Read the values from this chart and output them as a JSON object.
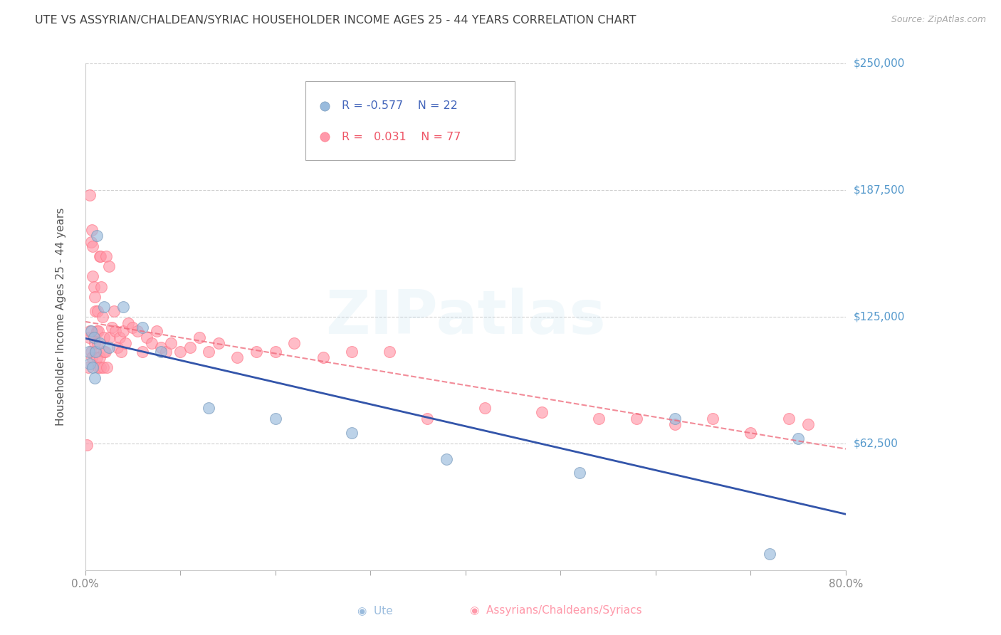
{
  "title": "UTE VS ASSYRIAN/CHALDEAN/SYRIAC HOUSEHOLDER INCOME AGES 25 - 44 YEARS CORRELATION CHART",
  "source": "Source: ZipAtlas.com",
  "ylabel": "Householder Income Ages 25 - 44 years",
  "watermark": "ZIPatlas",
  "xlim": [
    0.0,
    0.8
  ],
  "ylim": [
    0,
    250000
  ],
  "yticks": [
    0,
    62500,
    125000,
    187500,
    250000
  ],
  "right_tick_labels": [
    "",
    "$62,500",
    "$125,000",
    "$187,500",
    "$250,000"
  ],
  "xtick_positions": [
    0.0,
    0.1,
    0.2,
    0.3,
    0.4,
    0.5,
    0.6,
    0.7,
    0.8
  ],
  "xtick_labels": [
    "0.0%",
    "",
    "",
    "",
    "",
    "",
    "",
    "",
    "80.0%"
  ],
  "ute_R": -0.577,
  "ute_N": 22,
  "acs_R": 0.031,
  "acs_N": 77,
  "legend_label_ute": "Ute",
  "legend_label_acs": "Assyrians/Chaldeans/Syriacs",
  "ute_color": "#99BBDD",
  "acs_color": "#FF99AA",
  "trend_ute_color": "#3355AA",
  "trend_acs_color": "#EE6677",
  "background_color": "#FFFFFF",
  "grid_color": "#CCCCCC",
  "title_color": "#444444",
  "right_label_color": "#5599CC",
  "ylabel_color": "#555555",
  "ute_x": [
    0.004,
    0.005,
    0.006,
    0.008,
    0.009,
    0.01,
    0.011,
    0.012,
    0.015,
    0.02,
    0.025,
    0.04,
    0.06,
    0.08,
    0.13,
    0.2,
    0.28,
    0.38,
    0.52,
    0.62,
    0.72,
    0.75
  ],
  "ute_y": [
    108000,
    102000,
    118000,
    100000,
    115000,
    95000,
    108000,
    165000,
    112000,
    130000,
    110000,
    130000,
    120000,
    108000,
    80000,
    75000,
    68000,
    55000,
    48000,
    75000,
    8000,
    65000
  ],
  "acs_x": [
    0.002,
    0.003,
    0.004,
    0.005,
    0.005,
    0.006,
    0.006,
    0.007,
    0.007,
    0.008,
    0.008,
    0.009,
    0.009,
    0.01,
    0.01,
    0.011,
    0.011,
    0.012,
    0.012,
    0.013,
    0.013,
    0.014,
    0.014,
    0.015,
    0.015,
    0.016,
    0.016,
    0.017,
    0.018,
    0.019,
    0.02,
    0.02,
    0.021,
    0.022,
    0.023,
    0.025,
    0.026,
    0.028,
    0.03,
    0.032,
    0.034,
    0.036,
    0.038,
    0.04,
    0.042,
    0.045,
    0.05,
    0.055,
    0.06,
    0.065,
    0.07,
    0.075,
    0.08,
    0.085,
    0.09,
    0.1,
    0.11,
    0.12,
    0.13,
    0.14,
    0.16,
    0.18,
    0.2,
    0.22,
    0.25,
    0.28,
    0.32,
    0.36,
    0.42,
    0.48,
    0.54,
    0.58,
    0.62,
    0.66,
    0.7,
    0.74,
    0.76
  ],
  "acs_y": [
    62000,
    100000,
    115000,
    118000,
    185000,
    108000,
    162000,
    168000,
    105000,
    160000,
    145000,
    140000,
    115000,
    135000,
    112000,
    128000,
    108000,
    118000,
    105000,
    128000,
    112000,
    118000,
    100000,
    155000,
    105000,
    155000,
    100000,
    140000,
    125000,
    100000,
    108000,
    115000,
    108000,
    155000,
    100000,
    150000,
    115000,
    120000,
    128000,
    118000,
    110000,
    115000,
    108000,
    118000,
    112000,
    122000,
    120000,
    118000,
    108000,
    115000,
    112000,
    118000,
    110000,
    108000,
    112000,
    108000,
    110000,
    115000,
    108000,
    112000,
    105000,
    108000,
    108000,
    112000,
    105000,
    108000,
    108000,
    75000,
    80000,
    78000,
    75000,
    75000,
    72000,
    75000,
    68000,
    75000,
    72000
  ]
}
